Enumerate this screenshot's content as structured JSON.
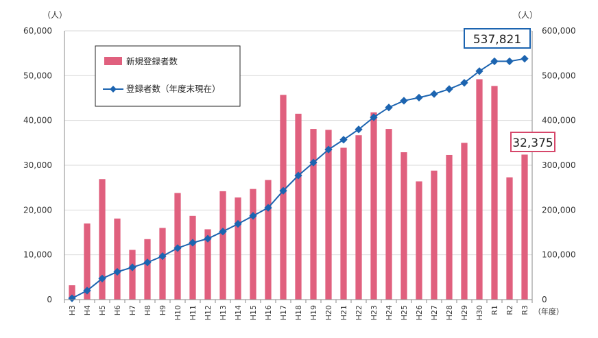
{
  "chart_data": {
    "type": "bar+line",
    "categories": [
      "H3",
      "H4",
      "H5",
      "H6",
      "H7",
      "H8",
      "H9",
      "H10",
      "H11",
      "H12",
      "H13",
      "H14",
      "H15",
      "H16",
      "H17",
      "H18",
      "H19",
      "H20",
      "H21",
      "H22",
      "H23",
      "H24",
      "H25",
      "H26",
      "H27",
      "H28",
      "H29",
      "H30",
      "R1",
      "R2",
      "R3"
    ],
    "series": [
      {
        "name": "新規登録者数",
        "type": "bar",
        "axis": "left",
        "color": "#e0607e",
        "values": [
          3200,
          17000,
          26900,
          18100,
          11100,
          13500,
          16000,
          23800,
          18700,
          15700,
          24200,
          22800,
          24700,
          26700,
          45700,
          41500,
          38100,
          37900,
          33900,
          36700,
          41800,
          38100,
          32900,
          26400,
          28800,
          32300,
          35000,
          49200,
          47700,
          27300,
          32375
        ]
      },
      {
        "name": "登録者数（年度末現在）",
        "type": "line",
        "axis": "right",
        "color": "#1c64b0",
        "values": [
          3000,
          20000,
          47000,
          62000,
          72000,
          83000,
          97000,
          115000,
          127000,
          136000,
          152000,
          169000,
          187000,
          205000,
          243000,
          277000,
          306000,
          335000,
          357000,
          380000,
          407000,
          429000,
          444000,
          451000,
          459000,
          470000,
          484000,
          510000,
          532000,
          532000,
          537821
        ]
      }
    ],
    "left_axis": {
      "unit": "（人）",
      "ylim": [
        0,
        60000
      ],
      "ticks": [
        "0",
        "10,000",
        "20,000",
        "30,000",
        "40,000",
        "50,000",
        "60,000"
      ]
    },
    "right_axis": {
      "unit": "（人）",
      "ylim": [
        0,
        600000
      ],
      "ticks": [
        "0",
        "100,000",
        "200,000",
        "300,000",
        "400,000",
        "500,000",
        "600,000"
      ]
    },
    "x_unit": "（年度）",
    "grid": true,
    "legend_position": "top-left",
    "annotations": [
      {
        "text": "537,821",
        "series": "登録者数（年度末現在）",
        "category": "R3",
        "border_color": "#1c64b0"
      },
      {
        "text": "32,375",
        "series": "新規登録者数",
        "category": "R3",
        "border_color": "#d6476a"
      }
    ]
  }
}
